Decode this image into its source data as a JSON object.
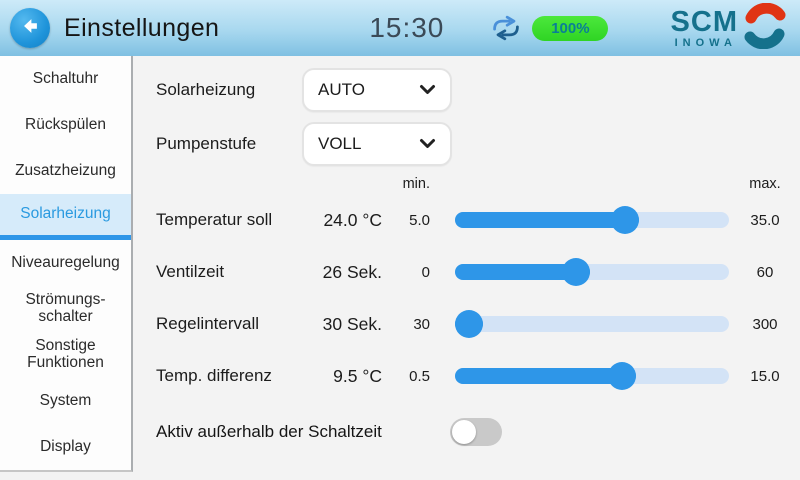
{
  "header": {
    "title": "Einstellungen",
    "time": "15:30",
    "battery": "100%",
    "logo_line1": "SCM",
    "logo_line2": "INOWA",
    "icons": {
      "back": "left-arrow",
      "sync": "two-way-arrows",
      "logo_mark": "red-teal-swirl"
    }
  },
  "sidebar": {
    "items": [
      {
        "label": "Schaltuhr",
        "selected": false
      },
      {
        "label": "Rückspülen",
        "selected": false
      },
      {
        "label": "Zusatzheizung",
        "selected": false
      },
      {
        "label": "Solarheizung",
        "selected": true
      },
      {
        "label": "Niveauregelung",
        "selected": false
      },
      {
        "label": "Strömungs-\nschalter",
        "selected": false
      },
      {
        "label": "Sonstige\nFunktionen",
        "selected": false
      },
      {
        "label": "System",
        "selected": false
      },
      {
        "label": "Display",
        "selected": false
      }
    ]
  },
  "controls": {
    "selects": [
      {
        "label": "Solarheizung",
        "value": "AUTO"
      },
      {
        "label": "Pumpenstufe",
        "value": "VOLL"
      }
    ],
    "min_header": "min.",
    "max_header": "max.",
    "sliders": [
      {
        "label": "Temperatur soll",
        "value_display": "24.0 °C",
        "min_label": "5.0",
        "max_label": "35.0",
        "min": 5.0,
        "max": 35.0,
        "value": 24.0
      },
      {
        "label": "Ventilzeit",
        "value_display": "26 Sek.",
        "min_label": "0",
        "max_label": "60",
        "min": 0,
        "max": 60,
        "value": 26
      },
      {
        "label": "Regelintervall",
        "value_display": "30 Sek.",
        "min_label": "30",
        "max_label": "300",
        "min": 30,
        "max": 300,
        "value": 30
      },
      {
        "label": "Temp. differenz",
        "value_display": "9.5 °C",
        "min_label": "0.5",
        "max_label": "15.0",
        "min": 0.5,
        "max": 15.0,
        "value": 9.5
      }
    ],
    "toggle": {
      "label": "Aktiv außerhalb der Schaltzeit",
      "state": false
    }
  },
  "colors": {
    "accent_blue": "#2e96e8",
    "slider_track": "#d3e3f6",
    "selected_item_bg": "#d6ebfa",
    "selected_item_text": "#2a9ae0",
    "header_gradient_top": "#cdeaf8",
    "header_gradient_bottom": "#7fc0e2",
    "battery_green": "#3ddd2b",
    "brand_teal": "#15718c",
    "brand_red": "#e03414",
    "toggle_off": "#c9c9c9"
  }
}
